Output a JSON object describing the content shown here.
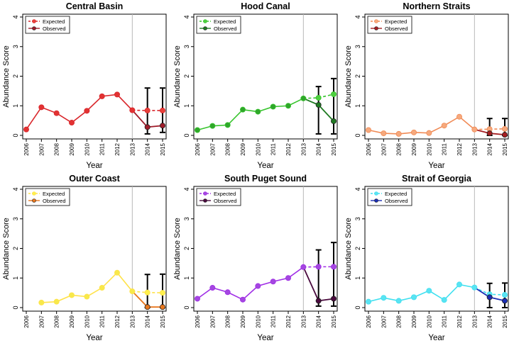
{
  "axis_labels": {
    "x": "Year",
    "y": "Abundance Score"
  },
  "legend_labels": {
    "expected": "Expected",
    "observed": "Observed"
  },
  "chart_data": [
    {
      "type": "line",
      "title": "Central Basin",
      "xlabel": "Year",
      "ylabel": "Abundance Score",
      "ylim": [
        0,
        4
      ],
      "yticks": [
        0,
        1,
        2,
        3,
        4
      ],
      "categories": [
        "2006",
        "2007",
        "2008",
        "2009",
        "2010",
        "2011",
        "2012",
        "2013",
        "2014",
        "2015"
      ],
      "observed": [
        0.2,
        0.95,
        0.75,
        0.43,
        0.83,
        1.32,
        1.38,
        0.85,
        0.28,
        0.33
      ],
      "expected": {
        "x": [
          "2013",
          "2014",
          "2015"
        ],
        "values": [
          0.85,
          0.84,
          0.84
        ]
      },
      "error_bars": [
        {
          "x": "2014",
          "low": 0.05,
          "high": 1.6
        },
        {
          "x": "2015",
          "low": 0.1,
          "high": 1.6
        }
      ],
      "vertical_line_at": "2013",
      "colors": {
        "expected_line": "#d9262b",
        "expected_fill": "#e8403a",
        "observed_line": "#a01c2a",
        "observed_fill": "#e23232"
      },
      "legend": [
        {
          "name": "Expected",
          "style": "dashed"
        },
        {
          "name": "Observed",
          "style": "solid"
        }
      ]
    },
    {
      "type": "line",
      "title": "Hood Canal",
      "xlabel": "Year",
      "ylabel": "Abundance Score",
      "ylim": [
        0,
        4
      ],
      "yticks": [
        0,
        1,
        2,
        3,
        4
      ],
      "categories": [
        "2006",
        "2007",
        "2008",
        "2009",
        "2010",
        "2011",
        "2012",
        "2013",
        "2014",
        "2015"
      ],
      "observed": [
        0.18,
        0.32,
        0.35,
        0.87,
        0.8,
        0.97,
        1.0,
        1.25,
        1.03,
        0.48
      ],
      "expected": {
        "x": [
          "2013",
          "2014",
          "2015"
        ],
        "values": [
          1.25,
          1.27,
          1.39
        ]
      },
      "error_bars": [
        {
          "x": "2014",
          "low": 0.05,
          "high": 1.65
        },
        {
          "x": "2015",
          "low": 0.05,
          "high": 1.92
        }
      ],
      "vertical_line_at": "2013",
      "colors": {
        "expected_line": "#36c42c",
        "expected_fill": "#4fcf3f",
        "observed_line": "#1f7a22",
        "observed_fill": "#2fa62a"
      },
      "legend": [
        {
          "name": "Expected",
          "style": "dashed"
        },
        {
          "name": "Observed",
          "style": "solid"
        }
      ]
    },
    {
      "type": "line",
      "title": "Northern Straits",
      "xlabel": "Year",
      "ylabel": "Abundance Score",
      "ylim": [
        0,
        4
      ],
      "yticks": [
        0,
        1,
        2,
        3,
        4
      ],
      "categories": [
        "2006",
        "2007",
        "2008",
        "2009",
        "2010",
        "2011",
        "2012",
        "2013",
        "2014",
        "2015"
      ],
      "observed": [
        0.18,
        0.07,
        0.05,
        0.1,
        0.08,
        0.33,
        0.63,
        0.2,
        0.07,
        0.02
      ],
      "expected": {
        "x": [
          "2013",
          "2014",
          "2015"
        ],
        "values": [
          0.2,
          0.21,
          0.22
        ]
      },
      "error_bars": [
        {
          "x": "2014",
          "low": 0.0,
          "high": 0.57
        },
        {
          "x": "2015",
          "low": 0.0,
          "high": 0.57
        }
      ],
      "vertical_line_at": "2013",
      "colors": {
        "expected_line": "#f08a55",
        "expected_fill": "#f6a97d",
        "observed_line": "#a61e22",
        "observed_fill": "#f6a97d"
      },
      "legend": [
        {
          "name": "Expected",
          "style": "dashed"
        },
        {
          "name": "Observed",
          "style": "solid"
        }
      ]
    },
    {
      "type": "line",
      "title": "Outer Coast",
      "xlabel": "Year",
      "ylabel": "Abundance Score",
      "ylim": [
        0,
        4
      ],
      "yticks": [
        0,
        1,
        2,
        3,
        4
      ],
      "categories": [
        "2006",
        "2007",
        "2008",
        "2009",
        "2010",
        "2011",
        "2012",
        "2013",
        "2014",
        "2015"
      ],
      "observed": [
        null,
        0.17,
        0.2,
        0.42,
        0.37,
        0.67,
        1.18,
        0.55,
        0.02,
        0.02
      ],
      "expected": {
        "x": [
          "2013",
          "2014",
          "2015"
        ],
        "values": [
          0.55,
          0.51,
          0.5
        ]
      },
      "error_bars": [
        {
          "x": "2014",
          "low": 0.0,
          "high": 1.12
        },
        {
          "x": "2015",
          "low": 0.0,
          "high": 1.13
        }
      ],
      "vertical_line_at": "2013",
      "colors": {
        "expected_line": "#ffe24a",
        "expected_fill": "#fff04d",
        "observed_line": "#e8771e",
        "observed_fill": "#f7e94a"
      },
      "legend": [
        {
          "name": "Expected",
          "style": "dashed"
        },
        {
          "name": "Observed",
          "style": "solid"
        }
      ]
    },
    {
      "type": "line",
      "title": "South Puget Sound",
      "xlabel": "Year",
      "ylabel": "Abundance Score",
      "ylim": [
        0,
        4
      ],
      "yticks": [
        0,
        1,
        2,
        3,
        4
      ],
      "categories": [
        "2006",
        "2007",
        "2008",
        "2009",
        "2010",
        "2011",
        "2012",
        "2013",
        "2014",
        "2015"
      ],
      "observed": [
        0.3,
        0.67,
        0.52,
        0.27,
        0.73,
        0.88,
        1.0,
        1.37,
        0.23,
        0.3
      ],
      "expected": {
        "x": [
          "2013",
          "2014",
          "2015"
        ],
        "values": [
          1.37,
          1.38,
          1.38
        ]
      },
      "error_bars": [
        {
          "x": "2014",
          "low": 0.05,
          "high": 1.95
        },
        {
          "x": "2015",
          "low": 0.05,
          "high": 2.2
        }
      ],
      "vertical_line_at": "2013",
      "colors": {
        "expected_line": "#a02ee6",
        "expected_fill": "#a447e0",
        "observed_line": "#4a0a3e",
        "observed_fill": "#a447e0"
      },
      "legend": [
        {
          "name": "Expected",
          "style": "dashed"
        },
        {
          "name": "Observed",
          "style": "solid"
        }
      ]
    },
    {
      "type": "line",
      "title": "Strait of Georgia",
      "xlabel": "Year",
      "ylabel": "Abundance Score",
      "ylim": [
        0,
        4
      ],
      "yticks": [
        0,
        1,
        2,
        3,
        4
      ],
      "categories": [
        "2006",
        "2007",
        "2008",
        "2009",
        "2010",
        "2011",
        "2012",
        "2013",
        "2014",
        "2015"
      ],
      "observed": [
        0.2,
        0.33,
        0.23,
        0.35,
        0.57,
        0.26,
        0.78,
        0.68,
        0.35,
        0.23
      ],
      "expected": {
        "x": [
          "2013",
          "2014",
          "2015"
        ],
        "values": [
          0.68,
          0.45,
          0.43
        ]
      },
      "error_bars": [
        {
          "x": "2014",
          "low": 0.0,
          "high": 0.82
        },
        {
          "x": "2015",
          "low": 0.0,
          "high": 0.83
        }
      ],
      "vertical_line_at": "2013",
      "colors": {
        "expected_line": "#3fe0f0",
        "expected_fill": "#5ae3f2",
        "observed_line": "#1b2eb5",
        "observed_fill": "#5ae3f2"
      },
      "legend": [
        {
          "name": "Expected",
          "style": "dashed"
        },
        {
          "name": "Observed",
          "style": "solid"
        }
      ]
    }
  ]
}
